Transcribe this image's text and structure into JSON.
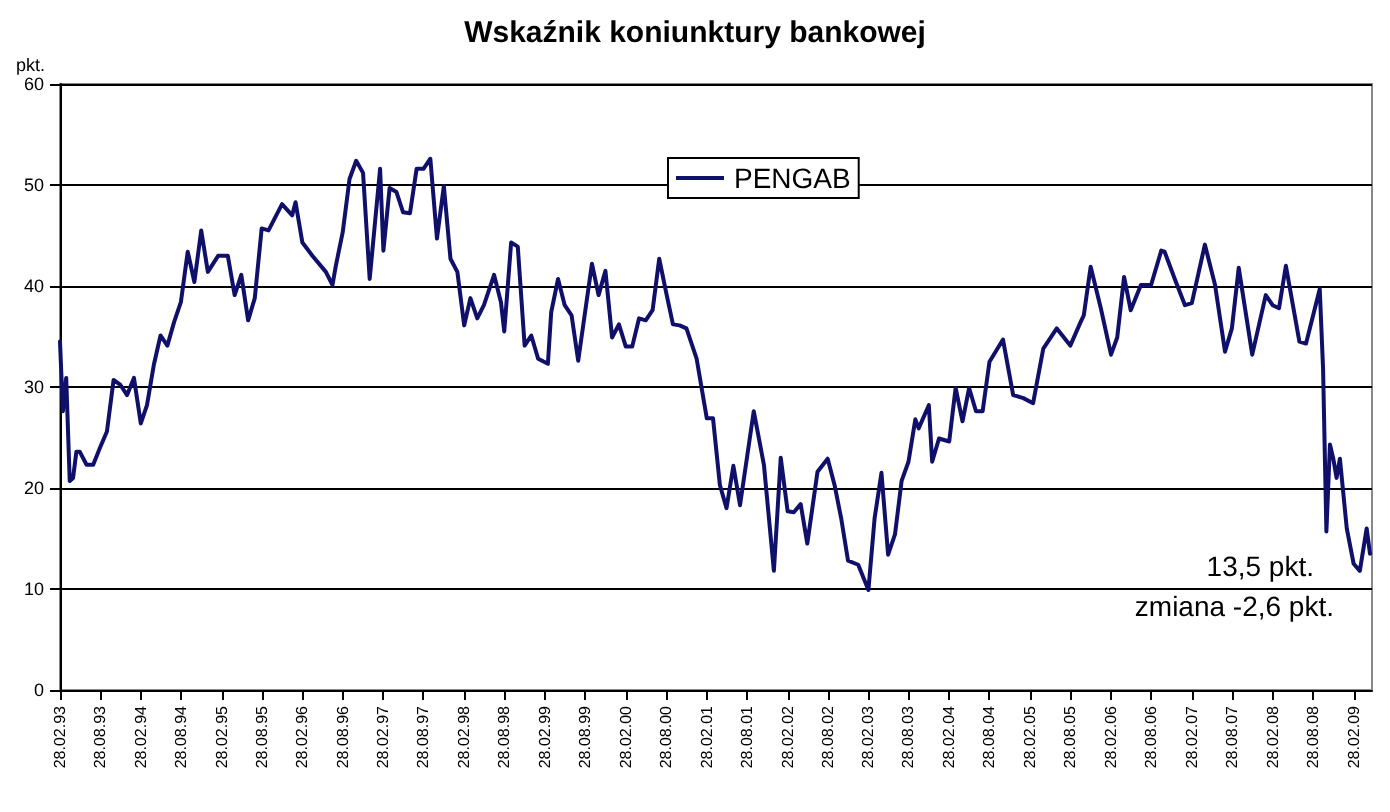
{
  "chart_data": {
    "type": "line",
    "title": "Wskaźnik koniunktury bankowej",
    "ylabel": "pkt.",
    "annotations": [
      "13,5 pkt.",
      "zmiana -2,6 pkt."
    ],
    "x": [
      "1993-02-28",
      "1993-03-13",
      "1993-03-28",
      "1993-04-13",
      "1993-04-28",
      "1993-05-13",
      "1993-05-28",
      "1993-06-28",
      "1993-07-28",
      "1993-08-28",
      "1993-09-28",
      "1993-10-28",
      "1993-11-28",
      "1993-12-28",
      "1994-01-28",
      "1994-02-28",
      "1994-03-28",
      "1994-04-28",
      "1994-05-28",
      "1994-06-28",
      "1994-07-28",
      "1994-08-28",
      "1994-09-28",
      "1994-10-28",
      "1994-11-28",
      "1994-12-28",
      "1995-02-13",
      "1995-03-28",
      "1995-04-28",
      "1995-05-28",
      "1995-06-28",
      "1995-07-28",
      "1995-08-28",
      "1995-09-28",
      "1995-11-28",
      "1996-01-13",
      "1996-01-28",
      "1996-02-28",
      "1996-04-13",
      "1996-06-13",
      "1996-07-13",
      "1996-07-28",
      "1996-08-28",
      "1996-09-28",
      "1996-10-28",
      "1996-11-28",
      "1996-12-28",
      "1997-02-13",
      "1997-02-28",
      "1997-03-28",
      "1997-04-28",
      "1997-05-28",
      "1997-06-28",
      "1997-07-28",
      "1997-08-28",
      "1997-09-28",
      "1997-10-28",
      "1997-11-28",
      "1997-12-28",
      "1998-01-28",
      "1998-02-28",
      "1998-03-28",
      "1998-04-28",
      "1998-05-28",
      "1998-07-13",
      "1998-08-13",
      "1998-08-28",
      "1998-09-28",
      "1998-10-28",
      "1998-11-28",
      "1998-12-28",
      "1999-01-28",
      "1999-03-13",
      "1999-03-28",
      "1999-04-28",
      "1999-05-28",
      "1999-06-28",
      "1999-07-28",
      "1999-09-28",
      "1999-10-28",
      "1999-11-28",
      "1999-12-28",
      "2000-01-28",
      "2000-02-28",
      "2000-03-28",
      "2000-04-28",
      "2000-05-28",
      "2000-06-28",
      "2000-07-28",
      "2000-08-28",
      "2000-09-28",
      "2000-10-28",
      "2000-11-28",
      "2001-01-13",
      "2001-02-28",
      "2001-03-28",
      "2001-04-28",
      "2001-05-28",
      "2001-06-28",
      "2001-07-28",
      "2001-09-28",
      "2001-11-13",
      "2001-12-28",
      "2002-01-28",
      "2002-02-28",
      "2002-03-28",
      "2002-04-28",
      "2002-05-28",
      "2002-07-13",
      "2002-08-28",
      "2002-09-28",
      "2002-10-28",
      "2002-11-28",
      "2003-01-13",
      "2003-02-28",
      "2003-03-28",
      "2003-04-28",
      "2003-05-28",
      "2003-06-28",
      "2003-07-28",
      "2003-08-28",
      "2003-09-28",
      "2003-10-13",
      "2003-11-28",
      "2003-12-13",
      "2004-01-13",
      "2004-02-28",
      "2004-03-28",
      "2004-04-28",
      "2004-05-28",
      "2004-06-28",
      "2004-07-28",
      "2004-08-28",
      "2004-10-28",
      "2004-12-13",
      "2005-01-28",
      "2005-03-13",
      "2005-04-28",
      "2005-06-28",
      "2005-08-28",
      "2005-10-13",
      "2005-10-28",
      "2005-11-28",
      "2006-01-13",
      "2006-02-28",
      "2006-03-28",
      "2006-04-28",
      "2006-05-28",
      "2006-07-13",
      "2006-08-28",
      "2006-10-13",
      "2006-10-28",
      "2006-12-13",
      "2007-01-28",
      "2007-02-28",
      "2007-04-28",
      "2007-06-13",
      "2007-07-28",
      "2007-08-28",
      "2007-09-28",
      "2007-11-28",
      "2008-01-28",
      "2008-02-28",
      "2008-03-28",
      "2008-04-28",
      "2008-06-28",
      "2008-07-28",
      "2008-09-28",
      "2008-10-13",
      "2008-10-28",
      "2008-11-13",
      "2008-11-28",
      "2008-12-13",
      "2008-12-28",
      "2009-01-28",
      "2009-02-28",
      "2009-03-28",
      "2009-04-28",
      "2009-05-13"
    ],
    "series": [
      {
        "name": "PENGAB",
        "color": "#10106b",
        "values": [
          34.5,
          27.6,
          30.9,
          20.7,
          21,
          23.6,
          23.6,
          22.3,
          22.3,
          24,
          25.6,
          30.7,
          30.2,
          29.2,
          30.9,
          26.4,
          28.2,
          32.2,
          35.1,
          34.1,
          36.4,
          38.4,
          43.4,
          40.4,
          45.5,
          41.4,
          43,
          43,
          39.1,
          41.1,
          36.6,
          38.8,
          45.7,
          45.5,
          48.1,
          47,
          48.3,
          44.3,
          43,
          41.4,
          40.1,
          42,
          45.3,
          50.6,
          52.4,
          51.2,
          40.7,
          51.6,
          43.5,
          49.7,
          49.3,
          47.3,
          47.2,
          51.6,
          51.6,
          52.6,
          44.7,
          49.9,
          42.7,
          41.4,
          36.1,
          38.8,
          36.8,
          38.1,
          41.1,
          38.4,
          35.5,
          44.3,
          43.9,
          34.1,
          35.1,
          32.8,
          32.3,
          37.4,
          40.7,
          38.1,
          37.1,
          32.6,
          42.2,
          39.1,
          41.5,
          34.9,
          36.2,
          34,
          34,
          36.8,
          36.6,
          37.6,
          42.7,
          39.4,
          36.2,
          36.1,
          35.8,
          32.8,
          26.9,
          26.9,
          20.3,
          18,
          22.2,
          18.3,
          27.6,
          22.3,
          11.8,
          23,
          17.7,
          17.6,
          18.4,
          14.5,
          21.6,
          22.9,
          20.3,
          17,
          12.8,
          12.4,
          9.9,
          17,
          21.5,
          13.4,
          15.4,
          20.7,
          22.6,
          26.8,
          25.9,
          28.2,
          22.6,
          24.9,
          24.6,
          29.9,
          26.6,
          29.9,
          27.6,
          27.6,
          32.5,
          34.7,
          29.2,
          28.9,
          28.4,
          33.8,
          35.8,
          34.1,
          36.4,
          37.1,
          41.9,
          37.8,
          33.2,
          34.9,
          40.9,
          37.6,
          40.1,
          40.1,
          43.5,
          43.4,
          40.7,
          38.1,
          38.3,
          44.1,
          40.1,
          33.5,
          35.8,
          41.8,
          33.2,
          39.1,
          38.1,
          37.8,
          42,
          34.5,
          34.3,
          39.7,
          31.8,
          15.7,
          24.3,
          22.9,
          21,
          22.9,
          16,
          12.5,
          11.8,
          16,
          13.5
        ]
      }
    ],
    "xlim": [
      "1993-02-28",
      "2009-05-22"
    ],
    "xticks": [
      {
        "value": "1993-02-28",
        "label": "28.02.93"
      },
      {
        "value": "1993-08-28",
        "label": "28.08.93"
      },
      {
        "value": "1994-02-28",
        "label": "28.02.94"
      },
      {
        "value": "1994-08-28",
        "label": "28.08.94"
      },
      {
        "value": "1995-02-28",
        "label": "28.02.95"
      },
      {
        "value": "1995-08-28",
        "label": "28.08.95"
      },
      {
        "value": "1996-02-28",
        "label": "28.02.96"
      },
      {
        "value": "1996-08-28",
        "label": "28.08.96"
      },
      {
        "value": "1997-02-28",
        "label": "28.02.97"
      },
      {
        "value": "1997-08-28",
        "label": "28.08.97"
      },
      {
        "value": "1998-02-28",
        "label": "28.02.98"
      },
      {
        "value": "1998-08-28",
        "label": "28.08.98"
      },
      {
        "value": "1999-02-28",
        "label": "28.02.99"
      },
      {
        "value": "1999-08-28",
        "label": "28.08.99"
      },
      {
        "value": "2000-02-28",
        "label": "28.02.00"
      },
      {
        "value": "2000-08-28",
        "label": "28.08.00"
      },
      {
        "value": "2001-02-28",
        "label": "28.02.01"
      },
      {
        "value": "2001-08-28",
        "label": "28.08.01"
      },
      {
        "value": "2002-02-28",
        "label": "28.02.02"
      },
      {
        "value": "2002-08-28",
        "label": "28.08.02"
      },
      {
        "value": "2003-02-28",
        "label": "28.02.03"
      },
      {
        "value": "2003-08-28",
        "label": "28.08.03"
      },
      {
        "value": "2004-02-28",
        "label": "28.02.04"
      },
      {
        "value": "2004-08-28",
        "label": "28.08.04"
      },
      {
        "value": "2005-02-28",
        "label": "28.02.05"
      },
      {
        "value": "2005-08-28",
        "label": "28.08.05"
      },
      {
        "value": "2006-02-28",
        "label": "28.02.06"
      },
      {
        "value": "2006-08-28",
        "label": "28.08.06"
      },
      {
        "value": "2007-02-28",
        "label": "28.02.07"
      },
      {
        "value": "2007-08-28",
        "label": "28.08.07"
      },
      {
        "value": "2008-02-28",
        "label": "28.02.08"
      },
      {
        "value": "2008-08-28",
        "label": "28.08.08"
      },
      {
        "value": "2009-02-28",
        "label": "28.02.09"
      }
    ],
    "ylim": [
      0,
      60
    ],
    "yticks": [
      0,
      10,
      20,
      30,
      40,
      50,
      60
    ],
    "grid": "y",
    "legend": "top",
    "marker": "none",
    "line_style": "solid"
  }
}
